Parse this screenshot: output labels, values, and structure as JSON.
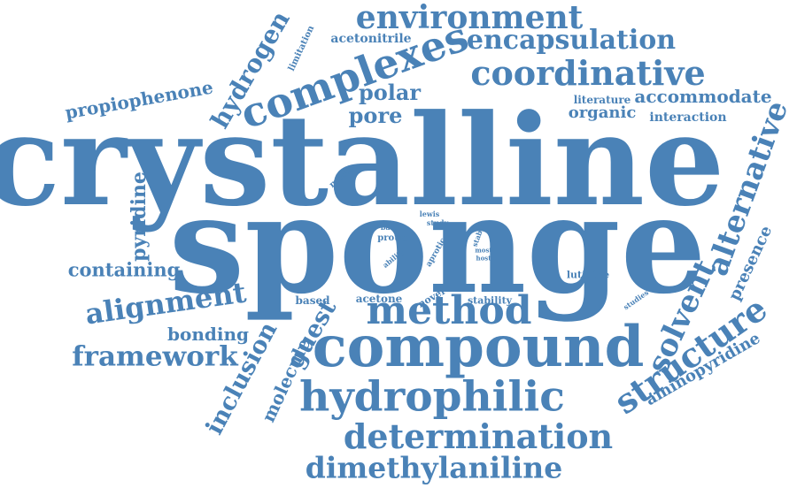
{
  "accent_color": "#4a82b7",
  "words": [
    {
      "id": "crystalline",
      "text": "crystalline"
    },
    {
      "id": "sponge",
      "text": "sponge"
    },
    {
      "id": "compound",
      "text": "compound"
    },
    {
      "id": "complexes",
      "text": "complexes"
    },
    {
      "id": "coordinative",
      "text": "coordinative"
    },
    {
      "id": "environment",
      "text": "environment"
    },
    {
      "id": "encapsulation",
      "text": "encapsulation"
    },
    {
      "id": "method",
      "text": "method"
    },
    {
      "id": "hydrophilic",
      "text": "hydrophilic"
    },
    {
      "id": "determination",
      "text": "determination"
    },
    {
      "id": "dimethylaniline",
      "text": "dimethylaniline"
    },
    {
      "id": "structure",
      "text": "structure"
    },
    {
      "id": "solvent",
      "text": "solvent"
    },
    {
      "id": "alternative",
      "text": "alternative"
    },
    {
      "id": "alignment",
      "text": "alignment"
    },
    {
      "id": "framework",
      "text": "framework"
    },
    {
      "id": "hydrogen",
      "text": "hydrogen"
    },
    {
      "id": "propiophenone",
      "text": "propiophenone"
    },
    {
      "id": "pyridine",
      "text": "pyridine"
    },
    {
      "id": "containing",
      "text": "containing"
    },
    {
      "id": "bonding",
      "text": "bonding"
    },
    {
      "id": "inclusion",
      "text": "inclusion"
    },
    {
      "id": "molecule",
      "text": "molecule"
    },
    {
      "id": "guest",
      "text": "guest"
    },
    {
      "id": "aminopyridine",
      "text": "aminopyridine"
    },
    {
      "id": "presence",
      "text": "presence"
    },
    {
      "id": "accommodate",
      "text": "accommodate"
    },
    {
      "id": "organic",
      "text": "organic"
    },
    {
      "id": "interaction",
      "text": "interaction"
    },
    {
      "id": "literature",
      "text": "literature"
    },
    {
      "id": "polar",
      "text": "polar"
    },
    {
      "id": "pore",
      "text": "pore"
    },
    {
      "id": "acetonitrile",
      "text": "acetonitrile"
    },
    {
      "id": "limitation",
      "text": "limitation"
    },
    {
      "id": "metal",
      "text": "metal"
    },
    {
      "id": "lutidine",
      "text": "lutidine"
    },
    {
      "id": "studies",
      "text": "studies"
    },
    {
      "id": "based",
      "text": "based"
    },
    {
      "id": "acetone",
      "text": "acetone"
    },
    {
      "id": "novel",
      "text": "novel"
    },
    {
      "id": "stability",
      "text": "stability"
    },
    {
      "id": "lewis",
      "text": "lewis"
    },
    {
      "id": "base",
      "text": "base"
    },
    {
      "id": "study",
      "text": "study"
    },
    {
      "id": "protic",
      "text": "protic"
    },
    {
      "id": "ability",
      "text": "ability"
    },
    {
      "id": "aprotic",
      "text": "aprotic"
    },
    {
      "id": "stable",
      "text": "stable"
    },
    {
      "id": "most",
      "text": "most"
    },
    {
      "id": "host",
      "text": "host"
    }
  ]
}
